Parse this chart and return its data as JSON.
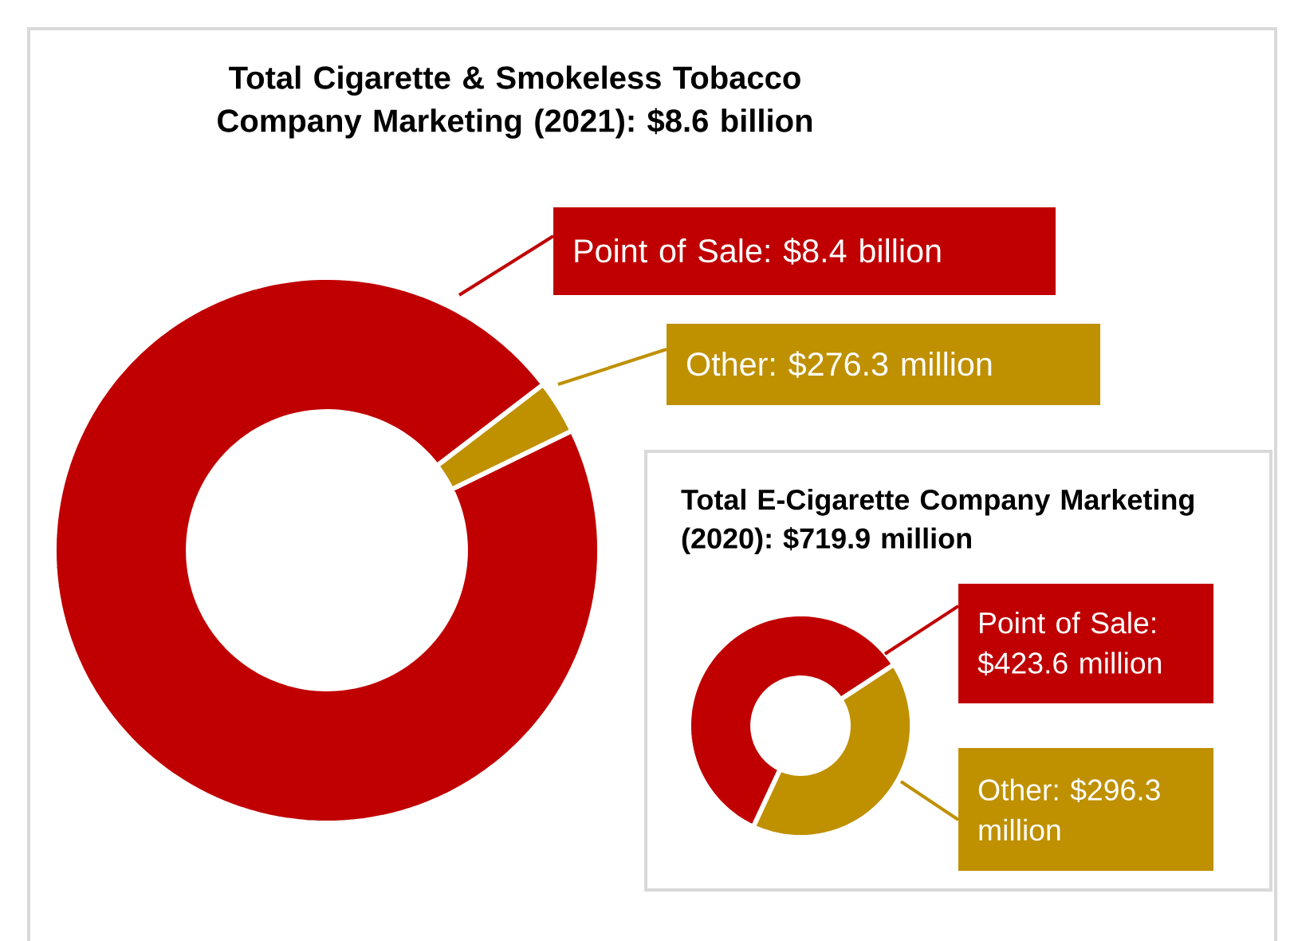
{
  "chart_data": [
    {
      "type": "donut",
      "title": "Total Cigarette & Smokeless Tobacco Company Marketing (2021): $8.6 billion",
      "categories": [
        "Point of Sale: $8.4 billion",
        "Other: $276.3 million"
      ],
      "values": [
        8400,
        276.3
      ],
      "colors": [
        "#c00000",
        "#bf9000"
      ]
    },
    {
      "type": "donut",
      "title": "Total E-Cigarette Company Marketing (2020): $719.9 million",
      "categories": [
        "Point of Sale: $423.6 million",
        "Other: $296.3 million"
      ],
      "values": [
        423.6,
        296.3
      ],
      "colors": [
        "#c00000",
        "#bf9000"
      ]
    }
  ]
}
